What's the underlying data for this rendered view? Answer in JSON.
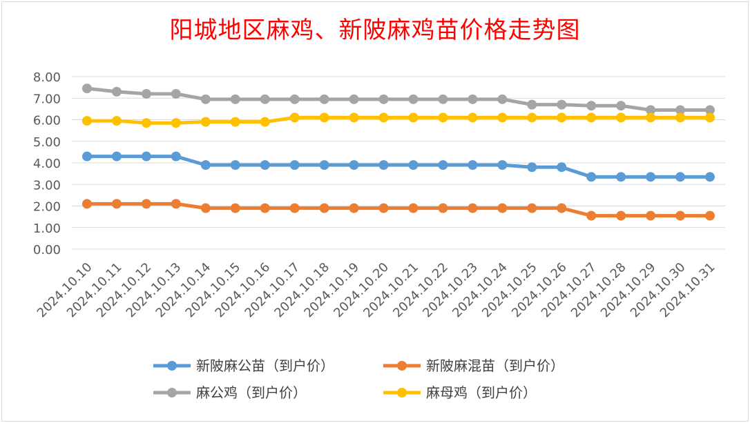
{
  "chart_data": {
    "type": "line",
    "title": "阳城地区麻鸡、新陂麻鸡苗价格走势图",
    "xlabel": "",
    "ylabel": "",
    "ylim": [
      0,
      8
    ],
    "y_ticks": [
      "0.00",
      "1.00",
      "2.00",
      "3.00",
      "4.00",
      "5.00",
      "6.00",
      "7.00",
      "8.00"
    ],
    "grid": true,
    "legend_position": "bottom",
    "categories": [
      "2024.10.10",
      "2024.10.11",
      "2024.10.12",
      "2024.10.13",
      "2024.10.14",
      "2024.10.15",
      "2024.10.16",
      "2024.10.17",
      "2024.10.18",
      "2024.10.19",
      "2024.10.20",
      "2024.10.21",
      "2024.10.22",
      "2024.10.23",
      "2024.10.24",
      "2024.10.25",
      "2024.10.26",
      "2024.10.27",
      "2024.10.28",
      "2024.10.29",
      "2024.10.30",
      "2024.10.31"
    ],
    "series": [
      {
        "name": "新陂麻公苗（到户价）",
        "color": "#5b9bd5",
        "values": [
          4.3,
          4.3,
          4.3,
          4.3,
          3.9,
          3.9,
          3.9,
          3.9,
          3.9,
          3.9,
          3.9,
          3.9,
          3.9,
          3.9,
          3.9,
          3.8,
          3.8,
          3.35,
          3.35,
          3.35,
          3.35,
          3.35
        ]
      },
      {
        "name": "新陂麻混苗（到户价）",
        "color": "#ed7d31",
        "values": [
          2.1,
          2.1,
          2.1,
          2.1,
          1.9,
          1.9,
          1.9,
          1.9,
          1.9,
          1.9,
          1.9,
          1.9,
          1.9,
          1.9,
          1.9,
          1.9,
          1.9,
          1.55,
          1.55,
          1.55,
          1.55,
          1.55
        ]
      },
      {
        "name": "麻公鸡（到户价）",
        "color": "#a5a5a5",
        "values": [
          7.45,
          7.3,
          7.2,
          7.2,
          6.95,
          6.95,
          6.95,
          6.95,
          6.95,
          6.95,
          6.95,
          6.95,
          6.95,
          6.95,
          6.95,
          6.7,
          6.7,
          6.65,
          6.65,
          6.45,
          6.45,
          6.45
        ]
      },
      {
        "name": "麻母鸡（到户价）",
        "color": "#ffc000",
        "values": [
          5.95,
          5.95,
          5.85,
          5.85,
          5.9,
          5.9,
          5.9,
          6.1,
          6.1,
          6.1,
          6.1,
          6.1,
          6.1,
          6.1,
          6.1,
          6.1,
          6.1,
          6.1,
          6.1,
          6.1,
          6.1,
          6.1
        ]
      }
    ]
  }
}
